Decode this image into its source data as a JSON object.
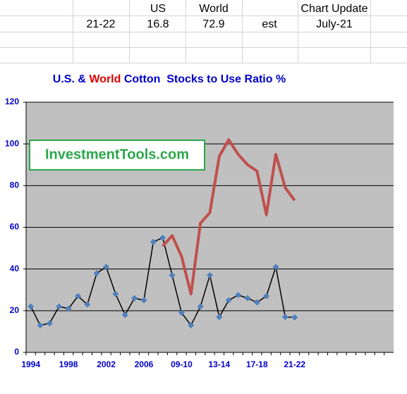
{
  "sheet": {
    "headers": [
      "US",
      "World",
      "Chart Update"
    ],
    "row": [
      "21-22",
      16.8,
      72.9,
      "est",
      "July-21"
    ]
  },
  "logo": "InvestmentTools.com",
  "chart_data": {
    "type": "line",
    "title": [
      "U.S. & ",
      "World",
      " Cotton  Stocks to Use Ratio %"
    ],
    "title_colors": [
      "#0000cc",
      "#e00000",
      "#0000cc"
    ],
    "categories": [
      "1994",
      null,
      null,
      null,
      "1998",
      null,
      null,
      null,
      "2002",
      null,
      null,
      null,
      "2006",
      null,
      null,
      null,
      "09-10",
      null,
      null,
      null,
      "13-14",
      null,
      null,
      null,
      "17-18",
      null,
      null,
      null,
      "21-22",
      null,
      null,
      null,
      null,
      null,
      null,
      null,
      null,
      null,
      null
    ],
    "series": [
      {
        "name": "US",
        "color": "#000000",
        "marker_color": "#4f81bd",
        "values": [
          22,
          13,
          14,
          22,
          21,
          27,
          23,
          38,
          41,
          28,
          18,
          26,
          25,
          53,
          55,
          37,
          19,
          13,
          22,
          37,
          17,
          25,
          27.5,
          26,
          24,
          27,
          41,
          17,
          16.8,
          null,
          null,
          null,
          null,
          null,
          null,
          null,
          null,
          null,
          null
        ]
      },
      {
        "name": "World",
        "color": "#c0504d",
        "values": [
          null,
          null,
          null,
          null,
          null,
          null,
          null,
          null,
          null,
          null,
          null,
          null,
          null,
          null,
          51,
          56,
          46,
          28,
          62,
          67,
          94,
          102,
          95,
          90,
          87,
          66,
          95,
          79,
          72.9,
          null,
          null,
          null,
          null,
          null,
          null,
          null,
          null,
          null,
          null
        ]
      }
    ],
    "ylim": [
      0,
      120
    ],
    "yticks": [
      0,
      20,
      40,
      60,
      80,
      100,
      120
    ],
    "grid": true
  }
}
